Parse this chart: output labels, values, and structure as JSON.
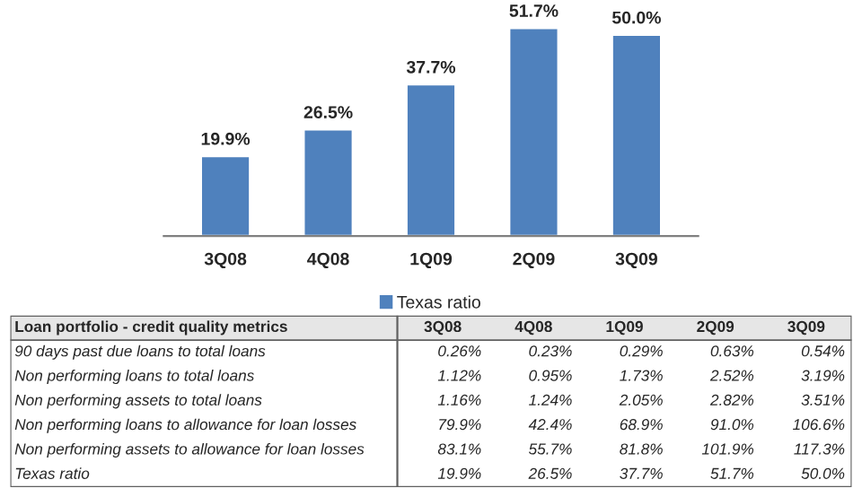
{
  "chart_data": [
    {
      "type": "bar",
      "categories": [
        "3Q08",
        "4Q08",
        "1Q09",
        "2Q09",
        "3Q09"
      ],
      "series": [
        {
          "name": "Texas ratio",
          "color": "#4f81bd",
          "values": [
            19.9,
            26.5,
            37.7,
            51.7,
            50.0
          ],
          "value_labels": [
            "19.9%",
            "26.5%",
            "37.7%",
            "51.7%",
            "50.0%"
          ]
        }
      ],
      "legend": "bottom",
      "grid": false
    },
    {
      "type": "other",
      "title": "Loan portfolio - credit quality metrics",
      "categories": [
        "3Q08",
        "4Q08",
        "1Q09",
        "2Q09",
        "3Q09"
      ],
      "y_categories": [
        "90 days past due loans to total loans",
        "Non performing loans to total loans",
        "Non performing assets to total loans",
        "Non performing loans to allowance for loan losses",
        "Non performing assets to allowance for loan losses",
        "Texas ratio"
      ],
      "cell_labels": [
        [
          "0.26%",
          "0.23%",
          "0.29%",
          "0.63%",
          "0.54%"
        ],
        [
          "1.12%",
          "0.95%",
          "1.73%",
          "2.52%",
          "3.19%"
        ],
        [
          "1.16%",
          "1.24%",
          "2.05%",
          "2.82%",
          "3.51%"
        ],
        [
          "79.9%",
          "42.4%",
          "68.9%",
          "91.0%",
          "106.6%"
        ],
        [
          "83.1%",
          "55.7%",
          "81.8%",
          "101.9%",
          "117.3%"
        ],
        [
          "19.9%",
          "26.5%",
          "37.7%",
          "51.7%",
          "50.0%"
        ]
      ]
    }
  ]
}
